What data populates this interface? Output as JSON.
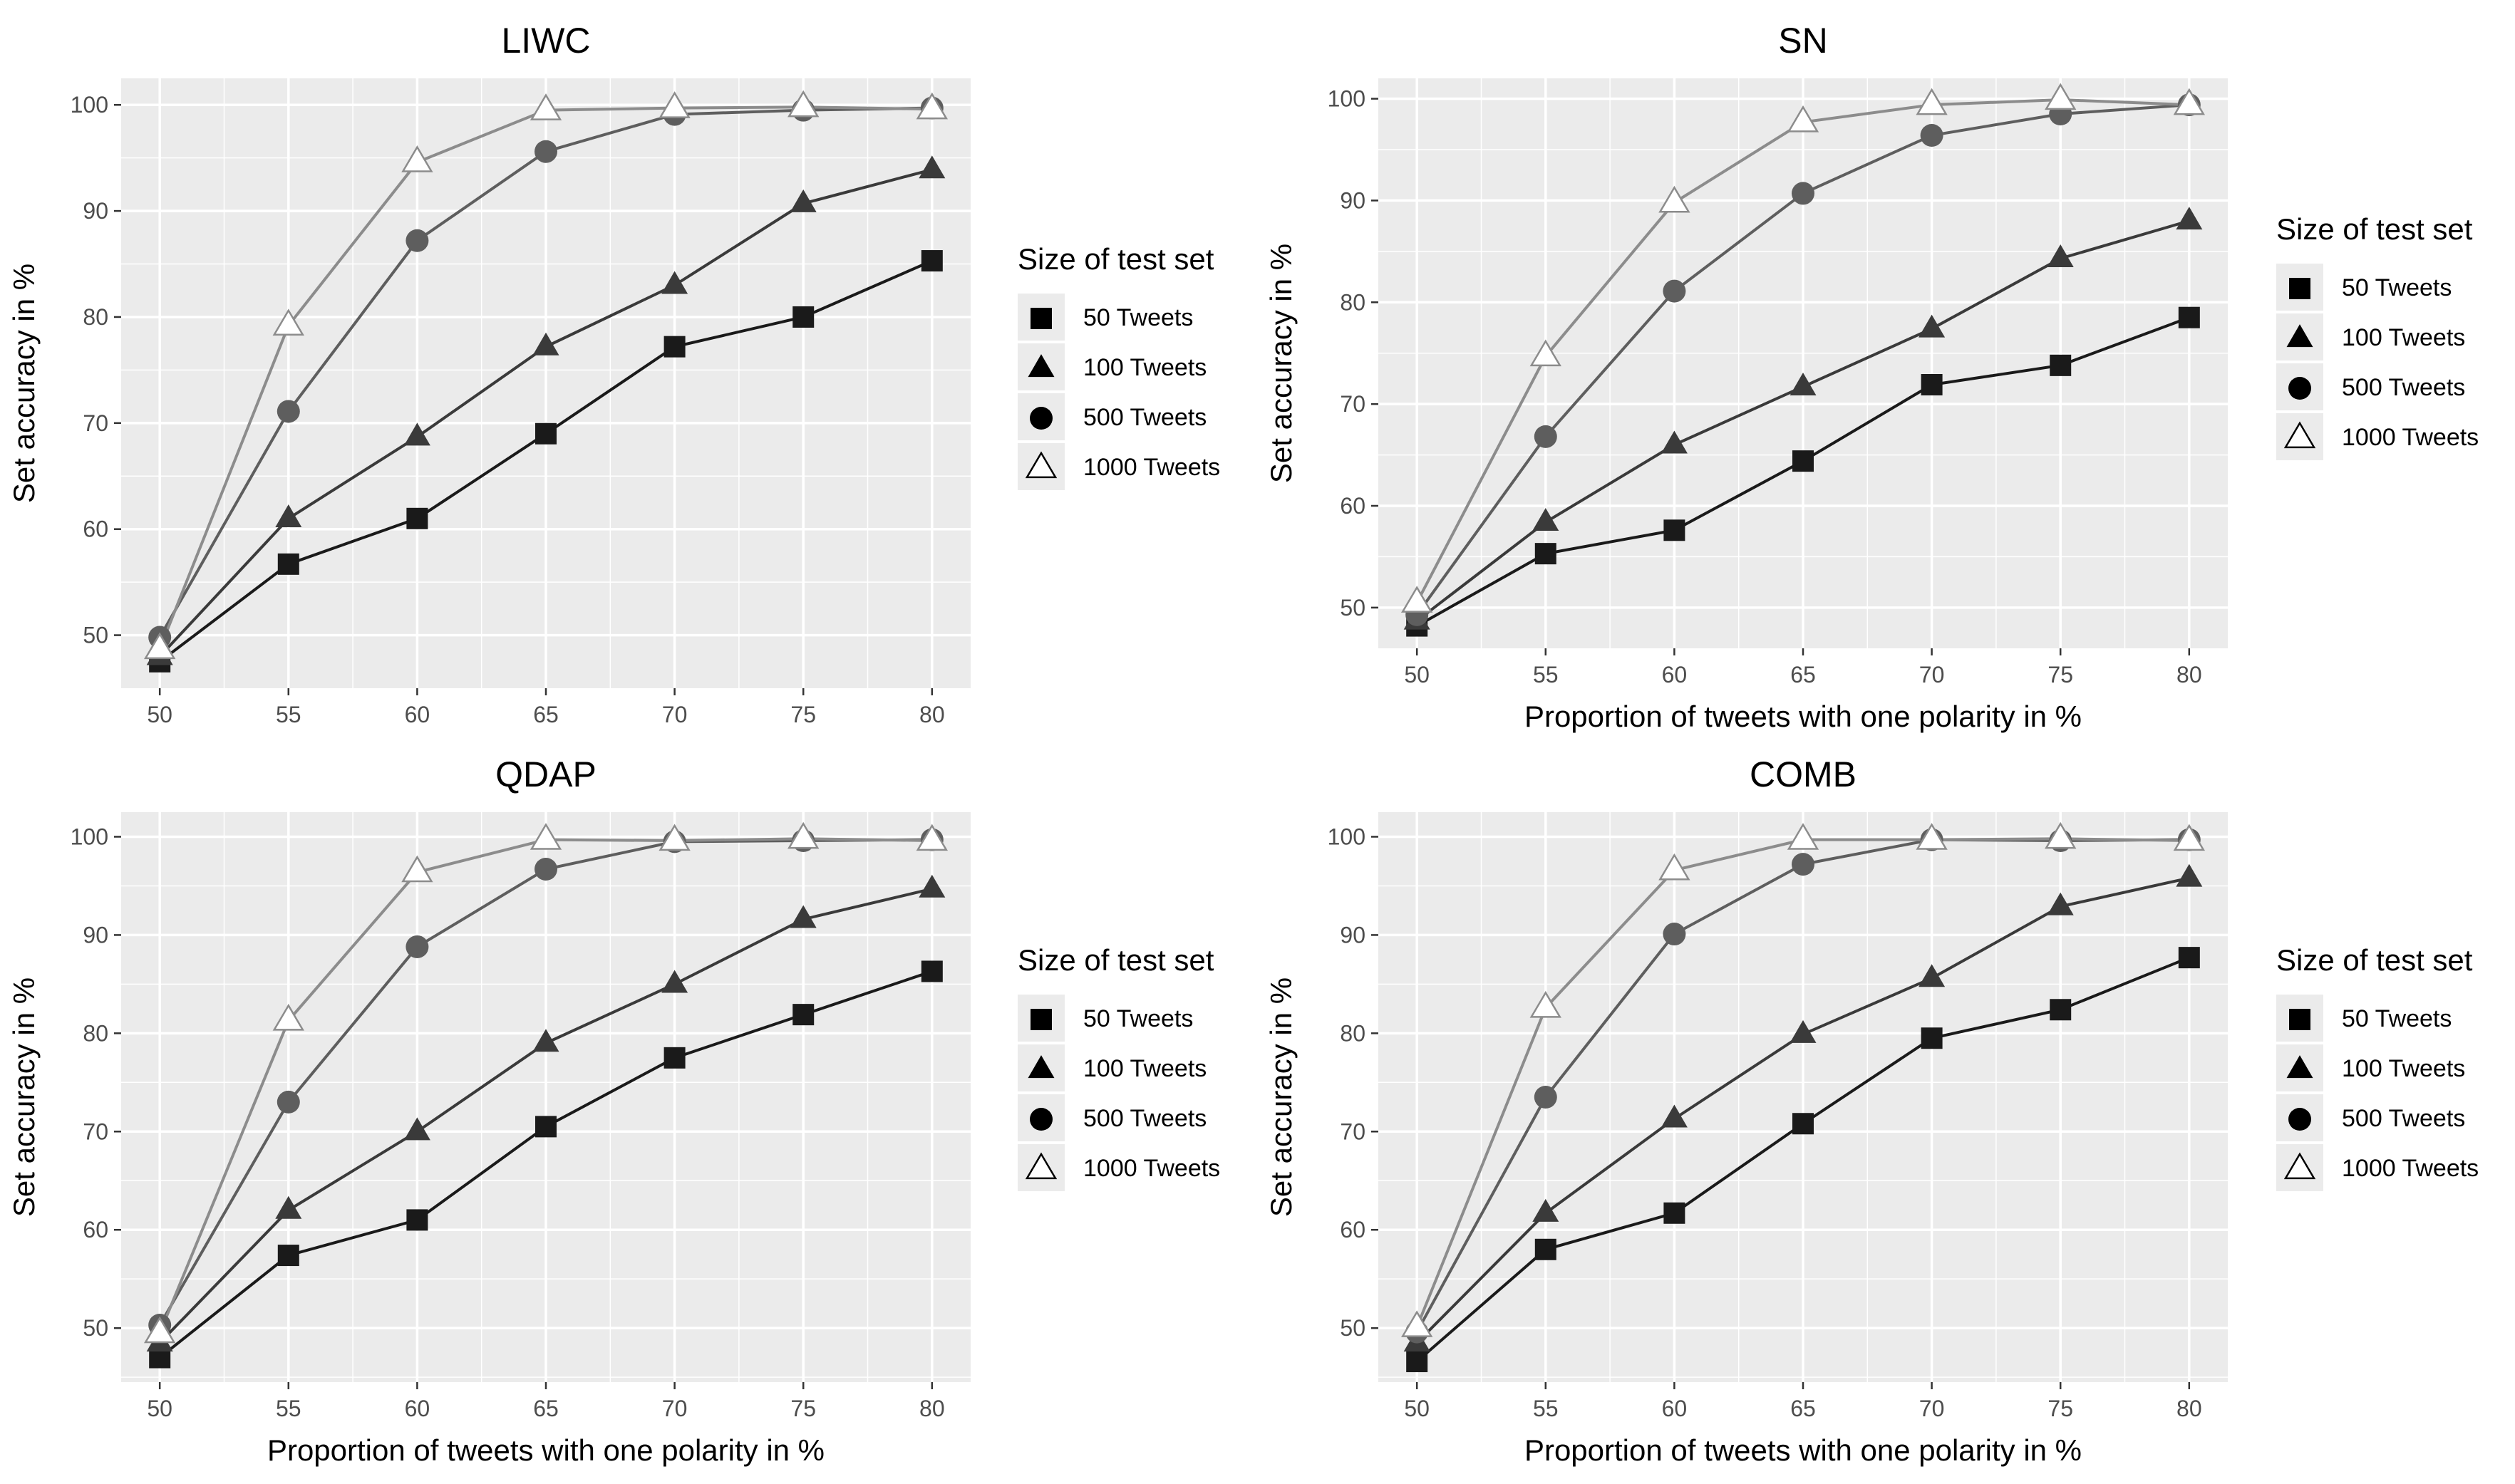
{
  "legend_title": "Size of test set",
  "colors": {
    "panel_bg": "#ebebeb",
    "grid": "#ffffff",
    "axis_text": "#4d4d4d",
    "title_text": "#000000",
    "s50": "#1a1a1a",
    "s100": "#3a3a3a",
    "s500": "#5e5e5e",
    "s1000": "#8c8c8c"
  },
  "chart_data": [
    {
      "type": "line",
      "title": "LIWC",
      "xlabel": "",
      "ylabel": "Set accuracy in %",
      "x": [
        50,
        55,
        60,
        65,
        70,
        75,
        80
      ],
      "xlim": [
        48.5,
        81.5
      ],
      "ylim": [
        45,
        102.5
      ],
      "yticks": [
        50,
        60,
        70,
        80,
        90,
        100
      ],
      "series": [
        {
          "name": "50 Tweets",
          "marker": "square",
          "values": [
            47.5,
            56.7,
            61,
            69,
            77.2,
            80,
            85.3
          ]
        },
        {
          "name": "100 Tweets",
          "marker": "triangle",
          "values": [
            48,
            61,
            68.7,
            77.2,
            83,
            90.7,
            93.9
          ]
        },
        {
          "name": "500 Tweets",
          "marker": "circle",
          "values": [
            49.8,
            71.1,
            87.2,
            95.6,
            99.1,
            99.5,
            99.7
          ]
        },
        {
          "name": "1000 Tweets",
          "marker": "triangle-open",
          "values": [
            48.7,
            79.2,
            94.6,
            99.5,
            99.7,
            99.8,
            99.6
          ]
        }
      ]
    },
    {
      "type": "line",
      "title": "SN",
      "xlabel": "Proportion of tweets with one polarity in %",
      "ylabel": "Set accuracy in %",
      "x": [
        50,
        55,
        60,
        65,
        70,
        75,
        80
      ],
      "xlim": [
        48.5,
        81.5
      ],
      "ylim": [
        46,
        102
      ],
      "yticks": [
        50,
        60,
        70,
        80,
        90,
        100
      ],
      "series": [
        {
          "name": "50 Tweets",
          "marker": "square",
          "values": [
            48.2,
            55.3,
            57.6,
            64.4,
            71.9,
            73.8,
            78.5
          ]
        },
        {
          "name": "100 Tweets",
          "marker": "triangle",
          "values": [
            48.7,
            58.4,
            66,
            71.7,
            77.4,
            84.3,
            88
          ]
        },
        {
          "name": "500 Tweets",
          "marker": "circle",
          "values": [
            49.3,
            66.8,
            81.1,
            90.7,
            96.4,
            98.5,
            99.4
          ]
        },
        {
          "name": "1000 Tweets",
          "marker": "triangle-open",
          "values": [
            50.5,
            74.7,
            89.8,
            97.7,
            99.4,
            99.9,
            99.4
          ]
        }
      ]
    },
    {
      "type": "line",
      "title": "QDAP",
      "xlabel": "Proportion of tweets with one polarity in %",
      "ylabel": "Set accuracy in %",
      "x": [
        50,
        55,
        60,
        65,
        70,
        75,
        80
      ],
      "xlim": [
        48.5,
        81.5
      ],
      "ylim": [
        44.5,
        102.5
      ],
      "yticks": [
        50,
        60,
        70,
        80,
        90,
        100
      ],
      "series": [
        {
          "name": "50 Tweets",
          "marker": "square",
          "values": [
            47,
            57.4,
            61,
            70.5,
            77.5,
            81.9,
            86.3
          ]
        },
        {
          "name": "100 Tweets",
          "marker": "triangle",
          "values": [
            48.5,
            62,
            70,
            79,
            85,
            91.6,
            94.7
          ]
        },
        {
          "name": "500 Tweets",
          "marker": "circle",
          "values": [
            50.3,
            73,
            88.8,
            96.7,
            99.5,
            99.6,
            99.7
          ]
        },
        {
          "name": "1000 Tweets",
          "marker": "triangle-open",
          "values": [
            49.5,
            81.3,
            96.4,
            99.7,
            99.6,
            99.8,
            99.6
          ]
        }
      ]
    },
    {
      "type": "line",
      "title": "COMB",
      "xlabel": "Proportion of tweets with one polarity in %",
      "ylabel": "Set accuracy in %",
      "x": [
        50,
        55,
        60,
        65,
        70,
        75,
        80
      ],
      "xlim": [
        48.5,
        81.5
      ],
      "ylim": [
        44.5,
        102.5
      ],
      "yticks": [
        50,
        60,
        70,
        80,
        90,
        100
      ],
      "series": [
        {
          "name": "50 Tweets",
          "marker": "square",
          "values": [
            46.6,
            58,
            61.7,
            70.8,
            79.5,
            82.4,
            87.7
          ]
        },
        {
          "name": "100 Tweets",
          "marker": "triangle",
          "values": [
            48.5,
            61.7,
            71.3,
            79.9,
            85.6,
            92.9,
            95.8
          ]
        },
        {
          "name": "500 Tweets",
          "marker": "circle",
          "values": [
            49.6,
            73.5,
            90.1,
            97.2,
            99.7,
            99.6,
            99.7
          ]
        },
        {
          "name": "1000 Tweets",
          "marker": "triangle-open",
          "values": [
            50.1,
            82.6,
            96.6,
            99.7,
            99.7,
            99.8,
            99.6
          ]
        }
      ]
    }
  ]
}
